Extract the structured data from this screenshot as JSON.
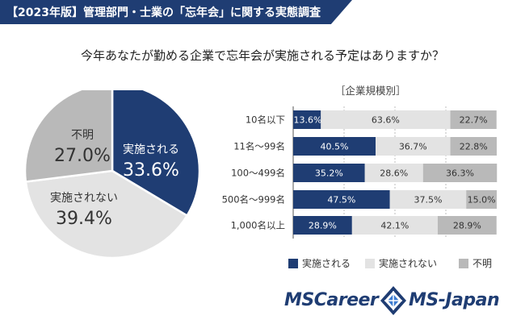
{
  "header": {
    "title": "【2023年版】管理部門・士業の「忘年会」に関する実態調査"
  },
  "question": "今年あなたが勤める企業で忘年会が実施される予定はありますか？",
  "colors": {
    "navy": "#1f3d73",
    "light": "#e3e3e3",
    "gray": "#b9b9b9"
  },
  "chart_data": [
    {
      "type": "pie",
      "slices": [
        {
          "label": "実施される",
          "pct_label": "33.6%",
          "value": 33.6
        },
        {
          "label": "実施されない",
          "pct_label": "39.4%",
          "value": 39.4
        },
        {
          "label": "不明",
          "pct_label": "27.0%",
          "value": 27.0
        }
      ]
    },
    {
      "type": "bar",
      "stacked": true,
      "orientation": "horizontal",
      "title": "［企業規模別］",
      "categories": [
        "10名以下",
        "11名〜99名",
        "100〜499名",
        "500名〜999名",
        "1,000名以上"
      ],
      "series": [
        {
          "name": "実施される",
          "values": [
            13.6,
            40.5,
            35.2,
            47.5,
            28.9
          ],
          "labels": [
            "13.6%",
            "40.5%",
            "35.2%",
            "47.5%",
            "28.9%"
          ]
        },
        {
          "name": "実施されない",
          "values": [
            63.6,
            36.7,
            28.6,
            37.5,
            42.1
          ],
          "labels": [
            "63.6%",
            "36.7%",
            "28.6%",
            "37.5%",
            "42.1%"
          ]
        },
        {
          "name": "不明",
          "values": [
            22.7,
            22.8,
            36.3,
            15.0,
            28.9
          ],
          "labels": [
            "22.7%",
            "22.8%",
            "36.3%",
            "15.0%",
            "28.9%"
          ]
        }
      ],
      "xlim": [
        0,
        100
      ],
      "grid": true,
      "legend": "bottom"
    }
  ],
  "legend": {
    "items": [
      {
        "label": "実施される",
        "color": "#1f3d73"
      },
      {
        "label": "実施されない",
        "color": "#e3e3e3"
      },
      {
        "label": "不明",
        "color": "#b9b9b9"
      }
    ]
  },
  "logos": {
    "left": "MSCareer",
    "right": "MS-Japan",
    "mark": "diamond-logo-icon"
  }
}
